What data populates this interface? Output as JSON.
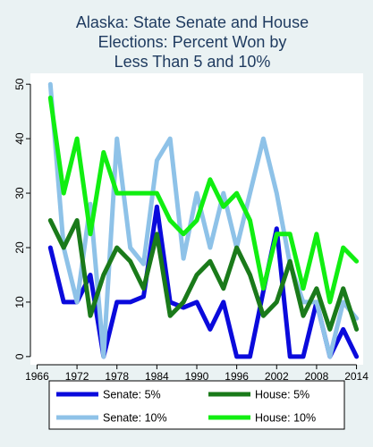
{
  "chart_data": {
    "type": "line",
    "title_lines": [
      "Alaska: State Senate and House",
      "Elections: Percent Won by",
      "Less Than 5 and 10%"
    ],
    "xlabel": "",
    "ylabel": "",
    "x": [
      1968,
      1970,
      1972,
      1974,
      1976,
      1978,
      1980,
      1982,
      1984,
      1986,
      1988,
      1990,
      1992,
      1994,
      1996,
      1998,
      2000,
      2002,
      2004,
      2006,
      2008,
      2010,
      2012,
      2014
    ],
    "xlim": [
      1965,
      2015
    ],
    "ylim": [
      -1.5,
      52
    ],
    "x_ticks": [
      1966,
      1972,
      1978,
      1984,
      1990,
      1996,
      2002,
      2008,
      2014
    ],
    "x_tick_labels": [
      "1966",
      "1972",
      "1978",
      "1984",
      "1990",
      "1996",
      "2002",
      "2008",
      "2014"
    ],
    "y_ticks": [
      0,
      10,
      20,
      30,
      40,
      50
    ],
    "y_tick_labels": [
      "0",
      "10",
      "20",
      "30",
      "40",
      "50"
    ],
    "grid": false,
    "legend_position": "bottom",
    "series": [
      {
        "name": "Senate: 5%",
        "color": "#0a0adc",
        "values": [
          20,
          10,
          10,
          15,
          0,
          10,
          10,
          11,
          27.5,
          10,
          9,
          10,
          5,
          10,
          0,
          0,
          12,
          23.5,
          0,
          0,
          10,
          0,
          5,
          0
        ]
      },
      {
        "name": "Senate: 10%",
        "color": "#8ec2e8",
        "values": [
          50,
          20,
          10,
          28,
          0,
          40,
          20,
          17,
          36,
          40,
          18,
          30,
          20,
          30,
          20,
          30,
          40,
          30,
          17,
          10,
          10,
          0,
          10,
          7
        ]
      },
      {
        "name": "House: 5%",
        "color": "#1a7a1a",
        "values": [
          25,
          20,
          25,
          7.5,
          15,
          20,
          17.5,
          12.5,
          22.5,
          7.5,
          10,
          15,
          17.5,
          12.5,
          20,
          15,
          7.5,
          10,
          17.5,
          7.5,
          12.5,
          5,
          12.5,
          5
        ]
      },
      {
        "name": "House: 10%",
        "color": "#11ee11",
        "values": [
          47.5,
          30,
          40,
          22.5,
          37.5,
          30,
          30,
          30,
          30,
          25,
          22.5,
          25,
          32.5,
          27.5,
          30,
          25,
          12.5,
          22.5,
          22.5,
          12.5,
          22.5,
          10,
          20,
          17.5
        ]
      }
    ],
    "legend_order": [
      "Senate: 5%",
      "House: 5%",
      "Senate: 10%",
      "House: 10%"
    ]
  }
}
